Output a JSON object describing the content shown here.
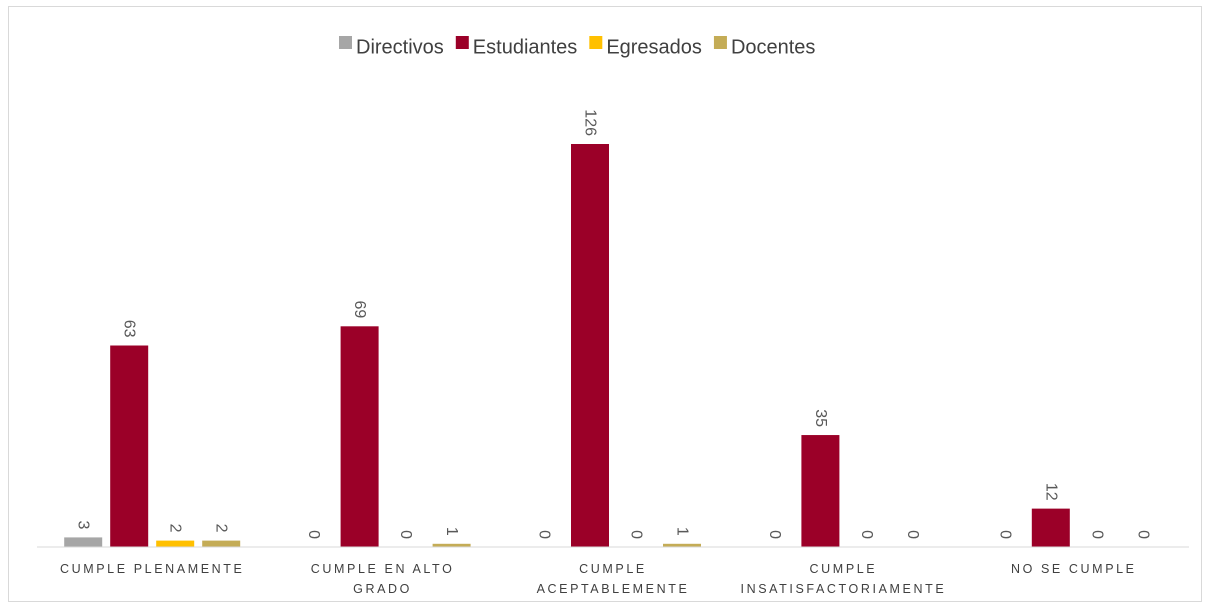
{
  "chart_data": {
    "type": "bar",
    "title": "",
    "xlabel": "",
    "ylabel": "",
    "ylim": [
      0,
      140
    ],
    "grid": false,
    "legend_position": "top-center",
    "categories": [
      [
        "CUMPLE PLENAMENTE"
      ],
      [
        "CUMPLE EN ALTO",
        "GRADO"
      ],
      [
        "CUMPLE",
        "ACEPTABLEMENTE"
      ],
      [
        "CUMPLE",
        "INSATISFACTORIAMENTE"
      ],
      [
        "NO SE CUMPLE"
      ]
    ],
    "series": [
      {
        "name": "Directivos",
        "color": "#a6a6a6",
        "values": [
          3,
          0,
          0,
          0,
          0
        ]
      },
      {
        "name": "Estudiantes",
        "color": "#9b0028",
        "values": [
          63,
          69,
          126,
          35,
          12
        ]
      },
      {
        "name": "Egresados",
        "color": "#ffc000",
        "values": [
          2,
          0,
          0,
          0,
          0
        ]
      },
      {
        "name": "Docentes",
        "color": "#c4ac56",
        "values": [
          2,
          1,
          1,
          0,
          0
        ]
      }
    ]
  }
}
